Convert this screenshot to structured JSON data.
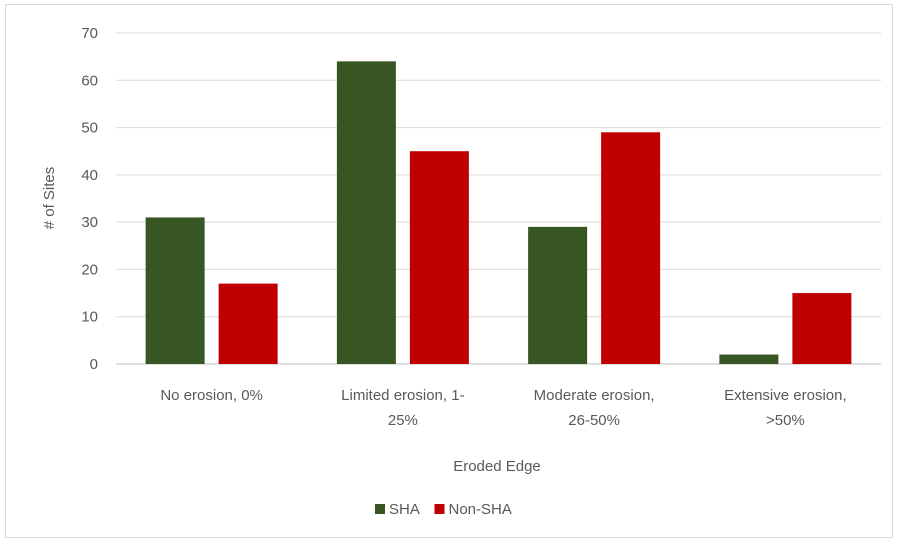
{
  "chart_data": {
    "type": "bar",
    "categories": [
      [
        "No erosion, 0%"
      ],
      [
        "Limited erosion, 1-",
        "25%"
      ],
      [
        "Moderate erosion,",
        "26-50%"
      ],
      [
        "Extensive erosion,",
        ">50%"
      ]
    ],
    "series": [
      {
        "name": "SHA",
        "color": "#375623",
        "values": [
          31,
          64,
          29,
          2
        ]
      },
      {
        "name": "Non-SHA",
        "color": "#c00000",
        "values": [
          17,
          45,
          49,
          15
        ]
      }
    ],
    "xlabel": "Eroded Edge",
    "ylabel": "# of Sites",
    "ylim": [
      0,
      70
    ],
    "yticks": [
      0,
      10,
      20,
      30,
      40,
      50,
      60,
      70
    ],
    "grid": true,
    "legend": "bottom"
  }
}
